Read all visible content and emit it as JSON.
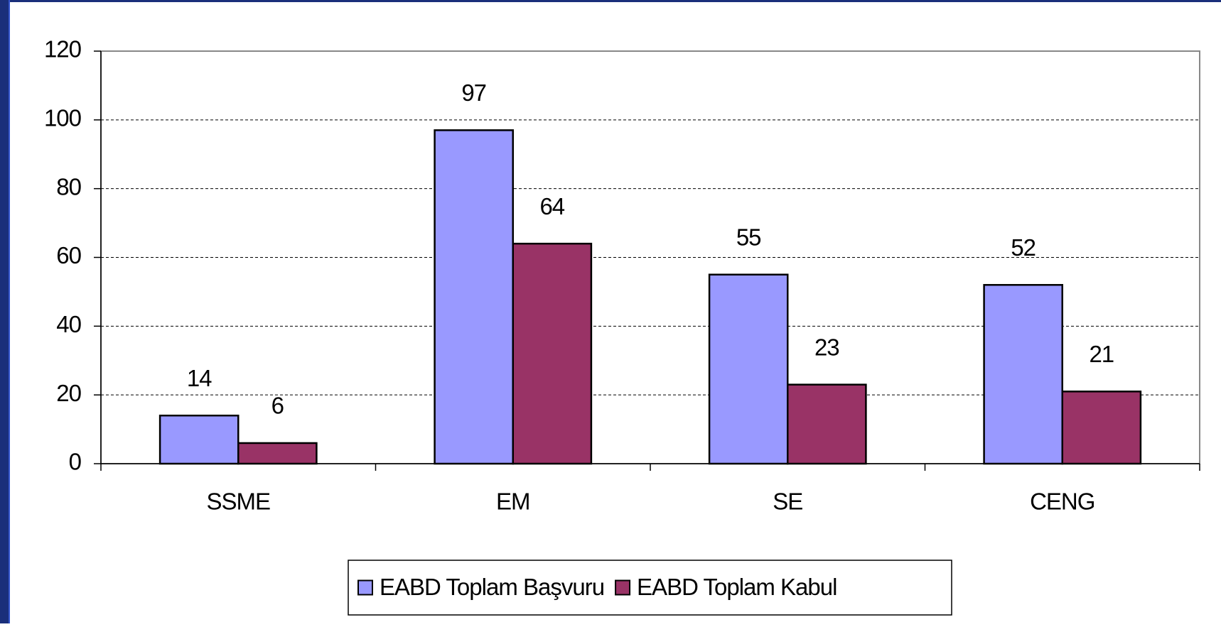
{
  "chart_data": {
    "type": "bar",
    "categories": [
      "SSME",
      "EM",
      "SE",
      "CENG"
    ],
    "series": [
      {
        "name": "EABD Toplam Başvuru",
        "color": "#9999ff",
        "values": [
          14,
          97,
          55,
          52
        ]
      },
      {
        "name": "EABD Toplam Kabul",
        "color": "#993366",
        "values": [
          6,
          64,
          23,
          21
        ]
      }
    ],
    "ylim": [
      0,
      120
    ],
    "yticks": [
      0,
      20,
      40,
      60,
      80,
      100,
      120
    ],
    "grid": true,
    "legend": "bottom"
  }
}
